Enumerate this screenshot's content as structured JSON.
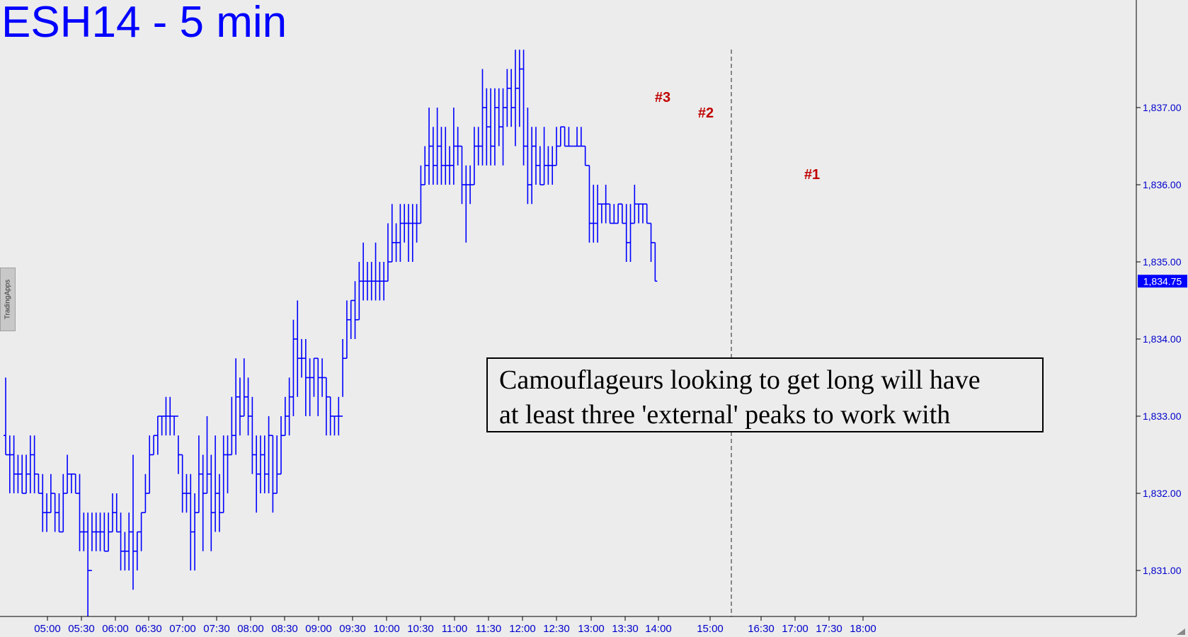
{
  "title": "ESH14 - 5 min",
  "note_lines": [
    "Camouflageurs looking to get long will have",
    "at least three 'external' peaks to work with"
  ],
  "branding": "TradingApps",
  "colors": {
    "bars": "#0000ff",
    "labels": "#c00000",
    "background": "#ececec",
    "axis_text": "#0000cc"
  },
  "chart_data": {
    "type": "ohlc",
    "title": "ESH14 - 5 min",
    "y_axis": {
      "ticks": [
        "1,831.00",
        "1,832.00",
        "1,833.00",
        "1,834.00",
        "1,835.00",
        "1,836.00",
        "1,837.00"
      ],
      "tick_values": [
        1831,
        1832,
        1833,
        1834,
        1835,
        1836,
        1837
      ],
      "range": [
        1830.35,
        1837.75
      ],
      "position": "right"
    },
    "x_axis": {
      "ticks": [
        "05:00",
        "05:30",
        "06:00",
        "06:30",
        "07:00",
        "07:30",
        "08:00",
        "08:30",
        "09:00",
        "09:30",
        "10:00",
        "10:30",
        "11:00",
        "11:30",
        "12:00",
        "12:30",
        "13:00",
        "13:30",
        "14:00",
        "15:00",
        "16:30",
        "17:00",
        "17:30",
        "18:00"
      ]
    },
    "last_price": "1,834.75",
    "session_break": "15:15",
    "grid": false,
    "annotations": [
      {
        "text": "#3",
        "time": "13:55",
        "price": 1837.0
      },
      {
        "text": "#2",
        "time": "14:45",
        "price": 1836.8
      },
      {
        "text": "#1",
        "time": "17:10",
        "price": 1836.0
      }
    ],
    "bars": [
      [
        1832.75,
        1833.5,
        1832.5,
        1832.5
      ],
      [
        1832.5,
        1832.75,
        1832.0,
        1832.5
      ],
      [
        1832.5,
        1832.75,
        1832.0,
        1832.25
      ],
      [
        1832.25,
        1832.5,
        1832.0,
        1832.25
      ],
      [
        1832.25,
        1832.5,
        1832.0,
        1832.0
      ],
      [
        1832.0,
        1832.5,
        1832.0,
        1832.25
      ],
      [
        1832.25,
        1832.75,
        1832.0,
        1832.5
      ],
      [
        1832.5,
        1832.75,
        1832.0,
        1832.25
      ],
      [
        1832.25,
        1832.25,
        1832.0,
        1832.0
      ],
      [
        1832.0,
        1832.25,
        1831.5,
        1831.75
      ],
      [
        1831.75,
        1832.0,
        1831.5,
        1831.75
      ],
      [
        1831.75,
        1832.25,
        1831.75,
        1832.0
      ],
      [
        1832.0,
        1832.0,
        1831.5,
        1831.75
      ],
      [
        1831.75,
        1832.0,
        1831.5,
        1831.5
      ],
      [
        1831.5,
        1832.25,
        1831.5,
        1832.0
      ],
      [
        1832.0,
        1832.5,
        1832.0,
        1832.25
      ],
      [
        1832.25,
        1832.25,
        1832.0,
        1832.25
      ],
      [
        1832.25,
        1832.25,
        1832.0,
        1832.0
      ],
      [
        1832.0,
        1832.25,
        1831.25,
        1831.5
      ],
      [
        1831.5,
        1831.75,
        1831.25,
        1831.5
      ],
      [
        1831.5,
        1831.75,
        1830.4,
        1831.0
      ],
      [
        1831.0,
        1831.75,
        1831.25,
        1831.5
      ],
      [
        1831.5,
        1831.75,
        1831.25,
        1831.5
      ],
      [
        1831.5,
        1831.75,
        1831.25,
        1831.5
      ],
      [
        1831.5,
        1831.75,
        1831.25,
        1831.25
      ],
      [
        1831.25,
        1831.75,
        1831.25,
        1831.5
      ],
      [
        1831.5,
        1832.0,
        1831.5,
        1831.75
      ],
      [
        1831.75,
        1832.0,
        1831.5,
        1831.5
      ],
      [
        1831.5,
        1831.75,
        1831.0,
        1831.25
      ],
      [
        1831.25,
        1831.5,
        1831.0,
        1831.25
      ],
      [
        1831.25,
        1831.75,
        1831.0,
        1831.5
      ],
      [
        1831.5,
        1832.5,
        1830.75,
        1831.25
      ],
      [
        1831.25,
        1831.5,
        1831.0,
        1831.5
      ],
      [
        1831.5,
        1831.75,
        1831.25,
        1831.75
      ],
      [
        1831.75,
        1832.25,
        1831.75,
        1832.0
      ],
      [
        1832.0,
        1832.75,
        1832.0,
        1832.5
      ],
      [
        1832.5,
        1832.75,
        1832.5,
        1832.75
      ],
      [
        1832.75,
        1833.0,
        1832.5,
        1833.0
      ],
      [
        1833.0,
        1833.0,
        1832.75,
        1833.0
      ],
      [
        1833.0,
        1833.25,
        1832.75,
        1833.0
      ],
      [
        1833.0,
        1833.25,
        1832.75,
        1833.0
      ],
      [
        1833.0,
        1833.0,
        1832.75,
        1833.0
      ],
      [
        1833.0,
        1832.75,
        1832.25,
        1832.5
      ],
      [
        1832.5,
        1832.5,
        1831.75,
        1832.0
      ],
      [
        1832.0,
        1832.25,
        1831.75,
        1832.0
      ],
      [
        1832.0,
        1832.25,
        1831.0,
        1831.5
      ],
      [
        1831.5,
        1832.0,
        1831.0,
        1831.75
      ],
      [
        1831.75,
        1832.75,
        1831.75,
        1832.25
      ],
      [
        1832.25,
        1832.5,
        1831.25,
        1832.0
      ],
      [
        1832.0,
        1833.0,
        1832.0,
        1832.25
      ],
      [
        1832.25,
        1832.5,
        1831.25,
        1831.75
      ],
      [
        1831.75,
        1832.75,
        1831.5,
        1832.0
      ],
      [
        1832.0,
        1832.25,
        1831.5,
        1831.75
      ],
      [
        1831.75,
        1832.75,
        1831.75,
        1832.5
      ],
      [
        1832.5,
        1832.75,
        1832.0,
        1832.5
      ],
      [
        1832.5,
        1833.25,
        1832.5,
        1832.75
      ],
      [
        1832.75,
        1833.75,
        1832.5,
        1833.25
      ],
      [
        1833.25,
        1833.5,
        1832.75,
        1833.0
      ],
      [
        1833.0,
        1833.75,
        1833.0,
        1833.25
      ],
      [
        1833.25,
        1833.5,
        1832.75,
        1833.0
      ],
      [
        1833.0,
        1833.25,
        1832.25,
        1832.5
      ],
      [
        1832.5,
        1832.75,
        1831.75,
        1832.25
      ],
      [
        1832.25,
        1832.75,
        1832.0,
        1832.5
      ],
      [
        1832.5,
        1832.75,
        1832.0,
        1832.25
      ],
      [
        1832.25,
        1833.0,
        1832.0,
        1832.75
      ],
      [
        1832.75,
        1832.75,
        1831.75,
        1832.0
      ],
      [
        1832.0,
        1832.75,
        1832.0,
        1832.25
      ],
      [
        1832.25,
        1833.0,
        1832.25,
        1832.75
      ],
      [
        1832.75,
        1833.25,
        1832.75,
        1833.0
      ],
      [
        1833.0,
        1833.5,
        1832.75,
        1833.25
      ],
      [
        1833.25,
        1834.25,
        1833.0,
        1834.0
      ],
      [
        1834.0,
        1834.5,
        1833.25,
        1833.75
      ],
      [
        1833.75,
        1834.0,
        1833.5,
        1833.75
      ],
      [
        1833.75,
        1834.0,
        1833.0,
        1833.5
      ],
      [
        1833.5,
        1833.75,
        1833.0,
        1833.5
      ],
      [
        1833.5,
        1833.75,
        1833.25,
        1833.75
      ],
      [
        1833.75,
        1833.75,
        1833.0,
        1833.5
      ],
      [
        1833.5,
        1833.75,
        1833.25,
        1833.5
      ],
      [
        1833.5,
        1833.5,
        1832.75,
        1833.25
      ],
      [
        1833.25,
        1833.25,
        1832.75,
        1833.0
      ],
      [
        1833.0,
        1833.0,
        1832.75,
        1833.0
      ],
      [
        1833.0,
        1833.25,
        1832.75,
        1833.0
      ],
      [
        1833.0,
        1834.0,
        1833.25,
        1833.75
      ],
      [
        1833.75,
        1834.5,
        1833.75,
        1834.25
      ],
      [
        1834.25,
        1834.5,
        1834.0,
        1834.5
      ],
      [
        1834.5,
        1834.75,
        1834.0,
        1834.25
      ],
      [
        1834.25,
        1835.0,
        1834.25,
        1834.75
      ],
      [
        1834.75,
        1835.25,
        1834.5,
        1834.75
      ],
      [
        1834.75,
        1835.0,
        1834.5,
        1834.75
      ],
      [
        1834.75,
        1835.0,
        1834.5,
        1834.75
      ],
      [
        1834.75,
        1835.25,
        1834.5,
        1834.75
      ],
      [
        1834.75,
        1835.0,
        1834.5,
        1834.75
      ],
      [
        1834.75,
        1835.0,
        1834.5,
        1834.75
      ],
      [
        1834.75,
        1835.5,
        1834.75,
        1835.0
      ],
      [
        1835.0,
        1835.75,
        1835.0,
        1835.25
      ],
      [
        1835.25,
        1835.5,
        1835.0,
        1835.25
      ],
      [
        1835.25,
        1835.75,
        1835.0,
        1835.5
      ],
      [
        1835.5,
        1835.75,
        1835.25,
        1835.5
      ],
      [
        1835.5,
        1835.75,
        1835.0,
        1835.5
      ],
      [
        1835.5,
        1835.75,
        1835.0,
        1835.5
      ],
      [
        1835.5,
        1835.75,
        1835.25,
        1835.5
      ],
      [
        1835.5,
        1836.25,
        1835.5,
        1836.0
      ],
      [
        1836.0,
        1836.5,
        1836.0,
        1836.25
      ],
      [
        1836.25,
        1837.0,
        1836.0,
        1836.5
      ],
      [
        1836.5,
        1836.75,
        1836.0,
        1836.25
      ],
      [
        1836.25,
        1837.0,
        1836.0,
        1836.5
      ],
      [
        1836.5,
        1836.75,
        1836.0,
        1836.25
      ],
      [
        1836.25,
        1836.75,
        1836.0,
        1836.25
      ],
      [
        1836.25,
        1836.5,
        1836.0,
        1836.25
      ],
      [
        1836.25,
        1837.0,
        1836.0,
        1836.5
      ],
      [
        1836.5,
        1836.75,
        1836.25,
        1836.5
      ],
      [
        1836.5,
        1836.5,
        1835.75,
        1836.0
      ],
      [
        1836.0,
        1836.25,
        1835.25,
        1836.0
      ],
      [
        1836.0,
        1836.25,
        1835.75,
        1836.0
      ],
      [
        1836.0,
        1836.75,
        1836.0,
        1836.5
      ],
      [
        1836.5,
        1836.75,
        1836.25,
        1836.5
      ],
      [
        1836.5,
        1837.5,
        1836.25,
        1837.0
      ],
      [
        1837.0,
        1837.25,
        1836.25,
        1836.75
      ],
      [
        1836.75,
        1837.25,
        1836.25,
        1836.5
      ],
      [
        1836.5,
        1837.25,
        1836.25,
        1837.0
      ],
      [
        1837.0,
        1837.25,
        1836.5,
        1836.75
      ],
      [
        1836.75,
        1837.25,
        1836.25,
        1837.0
      ],
      [
        1837.0,
        1837.5,
        1836.75,
        1837.25
      ],
      [
        1837.25,
        1837.5,
        1836.75,
        1837.0
      ],
      [
        1837.0,
        1837.75,
        1836.5,
        1837.25
      ],
      [
        1837.25,
        1837.75,
        1836.75,
        1837.5
      ],
      [
        1837.5,
        1837.75,
        1836.25,
        1836.5
      ],
      [
        1836.5,
        1837.0,
        1835.75,
        1836.0
      ],
      [
        1836.0,
        1836.75,
        1835.75,
        1836.5
      ],
      [
        1836.5,
        1836.75,
        1836.0,
        1836.25
      ],
      [
        1836.25,
        1836.5,
        1836.0,
        1836.0
      ],
      [
        1836.0,
        1836.75,
        1836.0,
        1836.25
      ],
      [
        1836.25,
        1836.5,
        1836.0,
        1836.25
      ],
      [
        1836.25,
        1836.5,
        1836.0,
        1836.25
      ],
      [
        1836.25,
        1836.75,
        1836.25,
        1836.5
      ],
      [
        1836.5,
        1836.75,
        1836.5,
        1836.75
      ],
      [
        1836.75,
        1836.75,
        1836.5,
        1836.5
      ],
      [
        1836.5,
        1836.75,
        1836.5,
        1836.5
      ],
      [
        1836.5,
        1836.5,
        1836.5,
        1836.5
      ],
      [
        1836.5,
        1836.75,
        1836.5,
        1836.5
      ],
      [
        1836.5,
        1836.75,
        1836.5,
        1836.5
      ],
      [
        1836.5,
        1836.5,
        1836.25,
        1836.25
      ],
      [
        1836.25,
        1836.25,
        1835.25,
        1835.5
      ],
      [
        1835.5,
        1836.0,
        1835.25,
        1835.5
      ],
      [
        1835.5,
        1836.0,
        1835.25,
        1835.75
      ],
      [
        1835.75,
        1835.75,
        1835.5,
        1835.75
      ],
      [
        1835.75,
        1836.0,
        1835.5,
        1835.75
      ],
      [
        1835.75,
        1835.75,
        1835.5,
        1835.5
      ],
      [
        1835.5,
        1835.75,
        1835.5,
        1835.5
      ],
      [
        1835.5,
        1835.75,
        1835.5,
        1835.75
      ],
      [
        1835.75,
        1835.75,
        1835.5,
        1835.5
      ],
      [
        1835.5,
        1835.75,
        1835.0,
        1835.25
      ],
      [
        1835.25,
        1835.75,
        1835.0,
        1835.5
      ],
      [
        1835.5,
        1836.0,
        1835.5,
        1835.75
      ],
      [
        1835.75,
        1835.75,
        1835.5,
        1835.75
      ],
      [
        1835.75,
        1835.75,
        1835.5,
        1835.75
      ],
      [
        1835.75,
        1835.75,
        1835.5,
        1835.5
      ],
      [
        1835.5,
        1835.5,
        1835.0,
        1835.25
      ],
      [
        1835.25,
        1835.25,
        1834.75,
        1834.75
      ]
    ]
  }
}
